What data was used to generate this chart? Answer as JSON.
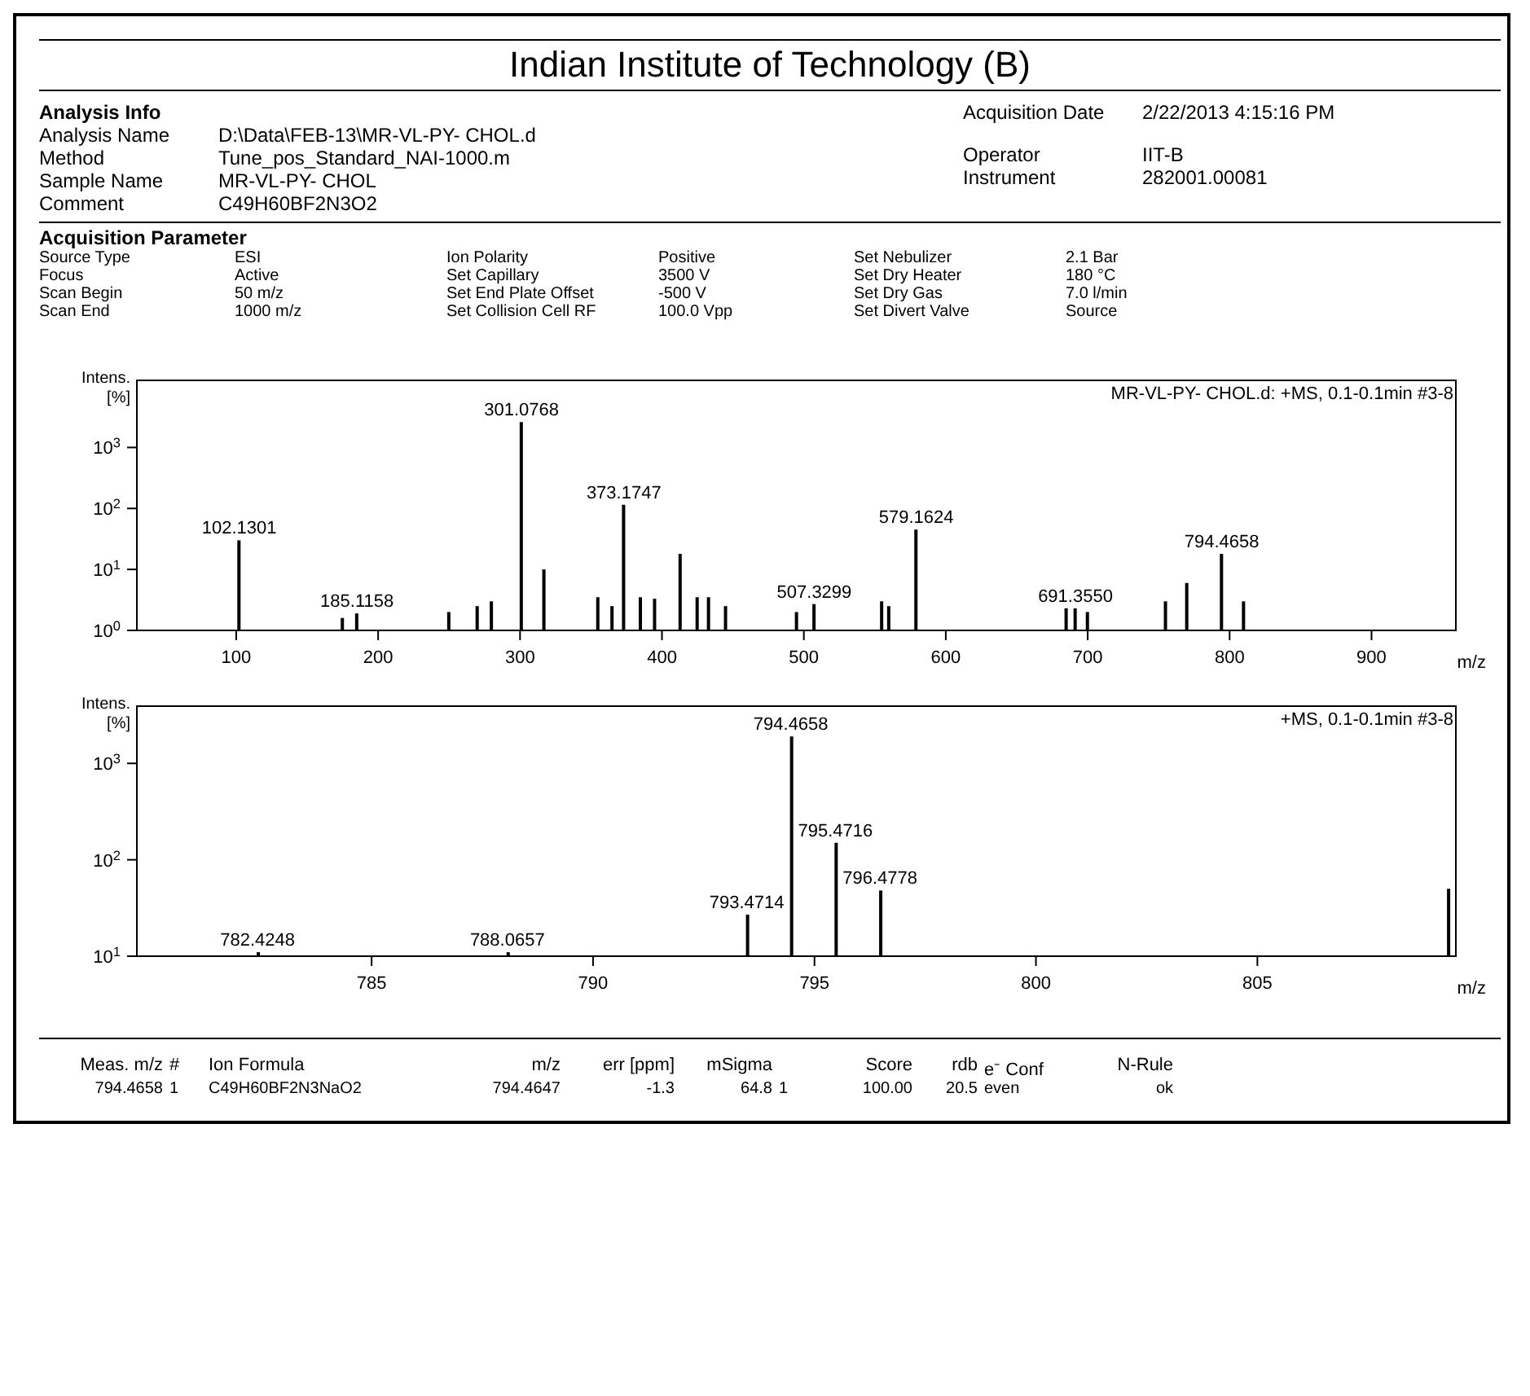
{
  "chart_data": [
    {
      "type": "bar",
      "title": "Indian Institute of Technology (B)",
      "xlabel": "m/z",
      "ylabel": "Intens. [%]",
      "log": true,
      "color": "#000000",
      "annotations": [
        "Analysis Info",
        "Analysis Name",
        "D:\\Data\\FEB-13\\MR-VL-PY- CHOL.d",
        "Method",
        "Tune_pos_Standard_NAI-1000.m",
        "Sample Name",
        "MR-VL-PY- CHOL",
        "Comment",
        "C49H60BF2N3O2",
        "Acquisition Date",
        "2/22/2013 4:15:16 PM",
        "Operator",
        "IIT-B",
        "Instrument",
        "282001.00081",
        "Acquisition Parameter",
        "Source Type",
        "ESI",
        "Focus",
        "Active",
        "Scan Begin",
        "50 m/z",
        "Scan End",
        "1000 m/z",
        "Ion Polarity",
        "Positive",
        "Set Capillary",
        "3500 V",
        "Set End Plate Offset",
        "-500 V",
        "Set Collision Cell RF",
        "100.0 Vpp",
        "Set Nebulizer",
        "2.1 Bar",
        "Set Dry Heater",
        "180 °C",
        "Set Dry Gas",
        "7.0 l/min",
        "Set Divert Valve",
        "Source",
        "MR-VL-PY- CHOL.d: +MS, 0.1-0.1min #3-8",
        {
          "text": "102.1301",
          "x": 102.1301,
          "y": 30
        },
        {
          "text": "185.1158",
          "x": 185.1158,
          "y": 1.9
        },
        {
          "text": "301.0768",
          "x": 301.0768,
          "y": 2600
        },
        {
          "text": "373.1747",
          "x": 373.1747,
          "y": 115
        },
        {
          "text": "507.3299",
          "x": 507.3299,
          "y": 2.7
        },
        {
          "text": "579.1624",
          "x": 579.1624,
          "y": 45
        },
        {
          "text": "691.3550",
          "x": 691.355,
          "y": 2.3
        },
        {
          "text": "794.4658",
          "x": 794.4658,
          "y": 18
        }
      ],
      "x": [
        102.1301,
        175,
        185.1158,
        250,
        270,
        280,
        301.0768,
        317,
        355,
        365,
        373.1747,
        385,
        395,
        413,
        425,
        433,
        445,
        495,
        507.3299,
        555,
        560,
        579.1624,
        685,
        691.355,
        700,
        755,
        770,
        794.4658,
        810
      ],
      "values": [
        30,
        1.6,
        1.9,
        2,
        2.5,
        3,
        2600,
        10,
        3.5,
        2.5,
        115,
        3.5,
        3.3,
        18,
        3.5,
        3.5,
        2.5,
        2,
        2.7,
        3,
        2.5,
        45,
        2.3,
        2.3,
        2,
        3,
        6,
        18,
        3
      ],
      "xlim": [
        30,
        960
      ],
      "xticks": [
        100,
        200,
        300,
        400,
        500,
        600,
        700,
        800,
        900
      ],
      "ylim": [
        1,
        13000
      ],
      "yticks": [
        {
          "value": 1,
          "label": "10$^{0}$"
        },
        {
          "value": 10,
          "label": "10$^{1}$"
        },
        {
          "value": 100,
          "label": "10$^{2}$"
        },
        {
          "value": 1000,
          "label": "10$^{3}$"
        }
      ]
    },
    {
      "type": "bar",
      "xlabel": "m/z",
      "ylabel": "Intens. [%]",
      "log": true,
      "color": "#000000",
      "annotations": [
        "+MS, 0.1-0.1min #3-8",
        "Meas. m/z",
        "#",
        "Ion Formula",
        "m/z",
        "err [ppm]",
        "mSigma",
        "Score",
        "rdb",
        "e⁻ Conf",
        "N-Rule",
        "794.4658",
        "1",
        "C49H60BF2N3NaO2",
        "794.4647",
        "-1.3",
        "64.8",
        "1",
        "100.00",
        "20.5",
        "even",
        "ok",
        {
          "text": "782.4248",
          "x": 782.4248,
          "y": 11
        },
        {
          "text": "788.0657",
          "x": 788.0657,
          "y": 11
        },
        {
          "text": "793.4714",
          "x": 793.4714,
          "y": 27
        },
        {
          "text": "794.4658",
          "x": 794.4658,
          "y": 1900
        },
        {
          "text": "795.4716",
          "x": 795.4716,
          "y": 150
        },
        {
          "text": "796.4778",
          "x": 796.4778,
          "y": 48
        }
      ],
      "x": [
        782.4248,
        788.0657,
        793.4714,
        794.4658,
        795.4716,
        796.4778,
        809.3
      ],
      "values": [
        11,
        11,
        27,
        1900,
        150,
        48,
        50
      ],
      "xlim": [
        779.7,
        809.5
      ],
      "xticks": [
        785,
        790,
        795,
        800,
        805
      ],
      "ylim": [
        10,
        4000
      ],
      "yticks": [
        {
          "value": 10,
          "label": "10$^{1}$"
        },
        {
          "value": 100,
          "label": "10$^{2}$"
        },
        {
          "value": 1000,
          "label": "10$^{3}$"
        }
      ]
    }
  ]
}
